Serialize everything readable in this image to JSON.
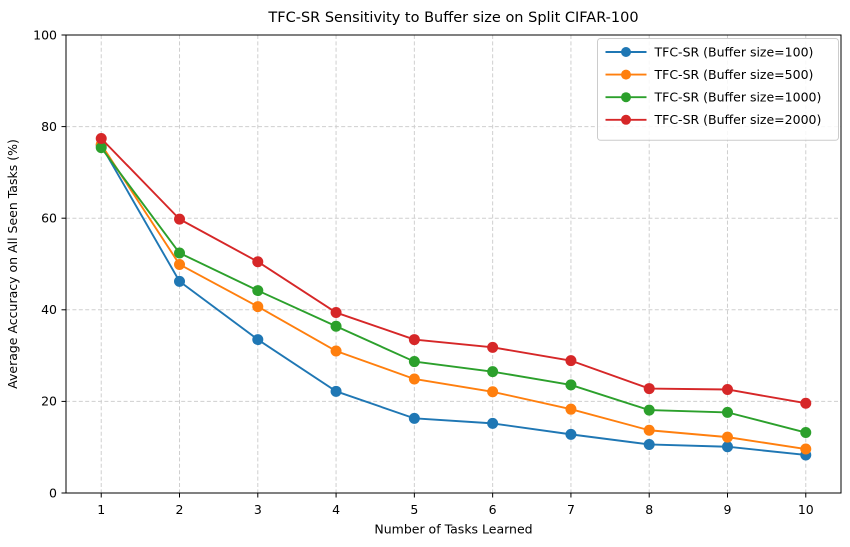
{
  "chart_data": {
    "type": "line",
    "title": "TFC-SR Sensitivity to Buffer size on Split CIFAR-100",
    "xlabel": "Number of Tasks Learned",
    "ylabel": "Average Accuracy on All Seen Tasks (%)",
    "x": [
      1,
      2,
      3,
      4,
      5,
      6,
      7,
      8,
      9,
      10
    ],
    "xticks": [
      1,
      2,
      3,
      4,
      5,
      6,
      7,
      8,
      9,
      10
    ],
    "yticks": [
      0,
      20,
      40,
      60,
      80,
      100
    ],
    "xlim": [
      0.55,
      10.45
    ],
    "ylim": [
      0,
      100
    ],
    "grid": true,
    "grid_style": "dashed",
    "legend_position": "upper right",
    "marker": "o",
    "series": [
      {
        "name": "TFC-SR (Buffer size=100)",
        "color": "#1f77b4",
        "values": [
          75.9,
          46.2,
          33.5,
          22.2,
          16.3,
          15.2,
          12.8,
          10.6,
          10.1,
          8.3
        ]
      },
      {
        "name": "TFC-SR (Buffer size=500)",
        "color": "#ff7f0e",
        "values": [
          76.1,
          49.9,
          40.7,
          31.0,
          24.9,
          22.1,
          18.3,
          13.7,
          12.2,
          9.6
        ]
      },
      {
        "name": "TFC-SR (Buffer size=1000)",
        "color": "#2ca02c",
        "values": [
          75.4,
          52.4,
          44.2,
          36.4,
          28.7,
          26.5,
          23.6,
          18.1,
          17.6,
          13.2
        ]
      },
      {
        "name": "TFC-SR (Buffer size=2000)",
        "color": "#d62728",
        "values": [
          77.4,
          59.8,
          50.5,
          39.4,
          33.5,
          31.8,
          28.9,
          22.8,
          22.6,
          19.6
        ]
      }
    ],
    "colors": {
      "spine": "#000000",
      "grid": "#cfcfcf",
      "legend_border": "#cccccc",
      "legend_background": "#ffffff"
    }
  }
}
